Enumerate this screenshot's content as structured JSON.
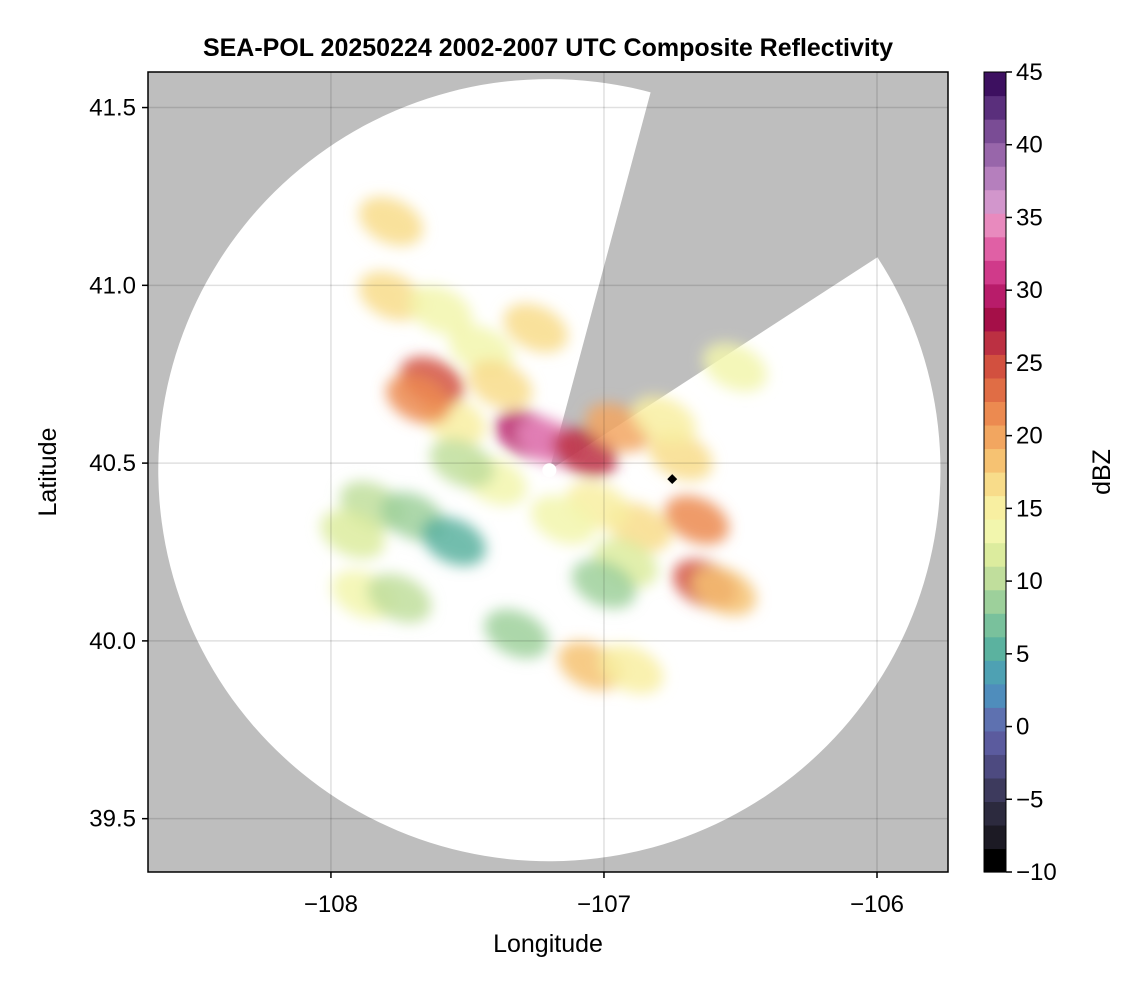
{
  "chart_data": {
    "type": "heatmap",
    "title": "SEA-POL 20250224 2002-2007 UTC Composite Reflectivity",
    "xlabel": "Longitude",
    "ylabel": "Latitude",
    "xlim": [
      -108.67,
      -105.74
    ],
    "ylim": [
      39.35,
      41.6
    ],
    "xticks": [
      -108,
      -107,
      -106
    ],
    "xtick_labels": [
      "−108",
      "−107",
      "−106"
    ],
    "yticks": [
      39.5,
      40.0,
      40.5,
      41.0,
      41.5
    ],
    "ytick_labels": [
      "39.5",
      "40.0",
      "40.5",
      "41.0",
      "41.5"
    ],
    "grid": true,
    "background_color": "#bebebe",
    "radar": {
      "center_lon": -107.2,
      "center_lat": 40.48,
      "range_lat_deg": 1.1,
      "blocked_sectors_deg_from_north": [
        [
          15,
          57
        ]
      ],
      "site_marker": {
        "lon": -106.75,
        "lat": 40.455
      }
    },
    "colorbar": {
      "label": "dBZ",
      "min": -10,
      "max": 45,
      "step": 2.5,
      "ticks": [
        -10,
        -5,
        0,
        5,
        10,
        15,
        20,
        25,
        30,
        35,
        40,
        45
      ],
      "tick_labels": [
        "−10",
        "−5",
        "0",
        "5",
        "10",
        "15",
        "20",
        "25",
        "30",
        "35",
        "40",
        "45"
      ],
      "colormap": "spectral-like",
      "colors": [
        "#000000",
        "#1c1a24",
        "#2c2a3e",
        "#3d3a5d",
        "#4d4a80",
        "#5b5b9e",
        "#5e71b0",
        "#4f8dbc",
        "#4ea1b3",
        "#5bb29f",
        "#79c19c",
        "#9dd09b",
        "#c0de9c",
        "#dcec9e",
        "#f2f6ad",
        "#f8efa1",
        "#f8dc8a",
        "#f6c272",
        "#f2a660",
        "#ec8a50",
        "#e06d45",
        "#d2503f",
        "#bc3042",
        "#a50f48",
        "#b81c6a",
        "#d03a8a",
        "#e060a5",
        "#e88abe",
        "#d296cc",
        "#b57fbd",
        "#9866aa",
        "#7a4c95",
        "#5a2f7c",
        "#3d1060"
      ]
    },
    "precip_cells": [
      {
        "lon": -107.28,
        "lat": 40.58,
        "dbz": 29
      },
      {
        "lon": -107.2,
        "lat": 40.56,
        "dbz": 35
      },
      {
        "lon": -107.07,
        "lat": 40.53,
        "dbz": 26
      },
      {
        "lon": -106.95,
        "lat": 40.6,
        "dbz": 20
      },
      {
        "lon": -106.72,
        "lat": 40.52,
        "dbz": 17
      },
      {
        "lon": -106.78,
        "lat": 40.62,
        "dbz": 15
      },
      {
        "lon": -106.66,
        "lat": 40.34,
        "dbz": 22
      },
      {
        "lon": -106.63,
        "lat": 40.16,
        "dbz": 24
      },
      {
        "lon": -106.56,
        "lat": 40.14,
        "dbz": 18
      },
      {
        "lon": -106.87,
        "lat": 40.32,
        "dbz": 16
      },
      {
        "lon": -107.02,
        "lat": 40.38,
        "dbz": 15
      },
      {
        "lon": -107.15,
        "lat": 40.34,
        "dbz": 13
      },
      {
        "lon": -106.92,
        "lat": 40.22,
        "dbz": 12
      },
      {
        "lon": -107.0,
        "lat": 40.16,
        "dbz": 8
      },
      {
        "lon": -107.55,
        "lat": 40.62,
        "dbz": 15
      },
      {
        "lon": -107.63,
        "lat": 40.73,
        "dbz": 25
      },
      {
        "lon": -107.68,
        "lat": 40.68,
        "dbz": 22
      },
      {
        "lon": -107.45,
        "lat": 40.82,
        "dbz": 13
      },
      {
        "lon": -107.38,
        "lat": 40.72,
        "dbz": 16
      },
      {
        "lon": -107.25,
        "lat": 40.88,
        "dbz": 17
      },
      {
        "lon": -107.4,
        "lat": 40.45,
        "dbz": 14
      },
      {
        "lon": -107.52,
        "lat": 40.5,
        "dbz": 11
      },
      {
        "lon": -107.85,
        "lat": 40.38,
        "dbz": 10
      },
      {
        "lon": -107.7,
        "lat": 40.35,
        "dbz": 8
      },
      {
        "lon": -107.55,
        "lat": 40.28,
        "dbz": 6
      },
      {
        "lon": -107.92,
        "lat": 40.3,
        "dbz": 12
      },
      {
        "lon": -107.88,
        "lat": 40.13,
        "dbz": 14
      },
      {
        "lon": -107.75,
        "lat": 40.12,
        "dbz": 10
      },
      {
        "lon": -107.78,
        "lat": 40.97,
        "dbz": 16
      },
      {
        "lon": -107.6,
        "lat": 40.93,
        "dbz": 13
      },
      {
        "lon": -107.05,
        "lat": 39.93,
        "dbz": 18
      },
      {
        "lon": -106.9,
        "lat": 39.92,
        "dbz": 15
      },
      {
        "lon": -107.32,
        "lat": 40.02,
        "dbz": 9
      },
      {
        "lon": -106.52,
        "lat": 40.77,
        "dbz": 14
      },
      {
        "lon": -107.78,
        "lat": 41.18,
        "dbz": 17
      }
    ]
  }
}
